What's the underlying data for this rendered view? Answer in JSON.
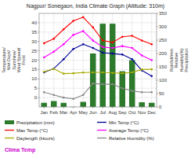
{
  "chart_data": {
    "type": "line",
    "title": "Nagpur/ Sonegaon, India Climate Graph (Altitude: 310m)",
    "ylabel": "Temperature/\nWet Days/\nSunshine/\nWind Speed/\nFrost",
    "y2label": "Rainfall/mm\nRelative\nHumidity(%)\nPrecipitation",
    "annotations": [
      {
        "text": "Clima Temp",
        "color": "#cc00cc"
      }
    ],
    "categories": [
      "Jan",
      "Feb",
      "Mar",
      "Apr",
      "May",
      "Jun",
      "Jul",
      "Aug",
      "Sep",
      "Oct",
      "Nov",
      "Dec"
    ],
    "series": [
      {
        "name": "Precipitation (mm)",
        "type": "bar",
        "axis": "y2",
        "color": "#2d7a2d",
        "values": [
          15.6,
          22.0,
          15.3,
          0.8,
          19.0,
          200.0,
          311.3,
          311.3,
          133.5,
          175.0,
          17.5,
          15.6
        ]
      },
      {
        "name": "Min Temp (°C)",
        "type": "line",
        "color": "#000099",
        "values": [
          13.5,
          15.5,
          20.5,
          26.0,
          28.5,
          26.5,
          24.0,
          23.5,
          23.0,
          20.5,
          14.5,
          11.5
        ]
      },
      {
        "name": "Max Temp (°C)",
        "type": "line",
        "color": "#ff0000",
        "values": [
          29.0,
          31.5,
          36.5,
          41.0,
          43.0,
          37.5,
          30.5,
          29.5,
          32.5,
          33.0,
          30.5,
          28.5
        ]
      },
      {
        "name": "Average Temp (°C)",
        "type": "line",
        "color": "#ff00ff",
        "values": [
          21.5,
          24.5,
          28.5,
          33.5,
          35.5,
          30.5,
          27.0,
          26.5,
          27.5,
          26.5,
          22.5,
          20.0
        ]
      },
      {
        "name": "Daylength (Hours)",
        "type": "line",
        "color": "#aaaa00",
        "values": [
          13.8,
          15.4,
          12.8,
          13.0,
          13.4,
          13.5,
          13.5,
          13.2,
          13.0,
          13.5,
          15.0,
          15.1
        ]
      },
      {
        "name": "Relative Humidity (%)",
        "type": "line",
        "axis": "y2",
        "color": "#888888",
        "values": [
          55,
          45,
          35,
          30,
          45,
          88,
          85,
          85,
          70,
          60,
          55,
          55
        ]
      }
    ],
    "marker": "circle",
    "ylim": [
      -5,
      45
    ],
    "yticks": [
      0,
      5,
      10,
      15,
      20,
      25,
      30,
      35,
      40
    ],
    "y2lim": [
      0,
      350
    ],
    "y2ticks": [
      0,
      50,
      100,
      150,
      200,
      250,
      300,
      350
    ],
    "grid": true,
    "legend": "bottom"
  }
}
